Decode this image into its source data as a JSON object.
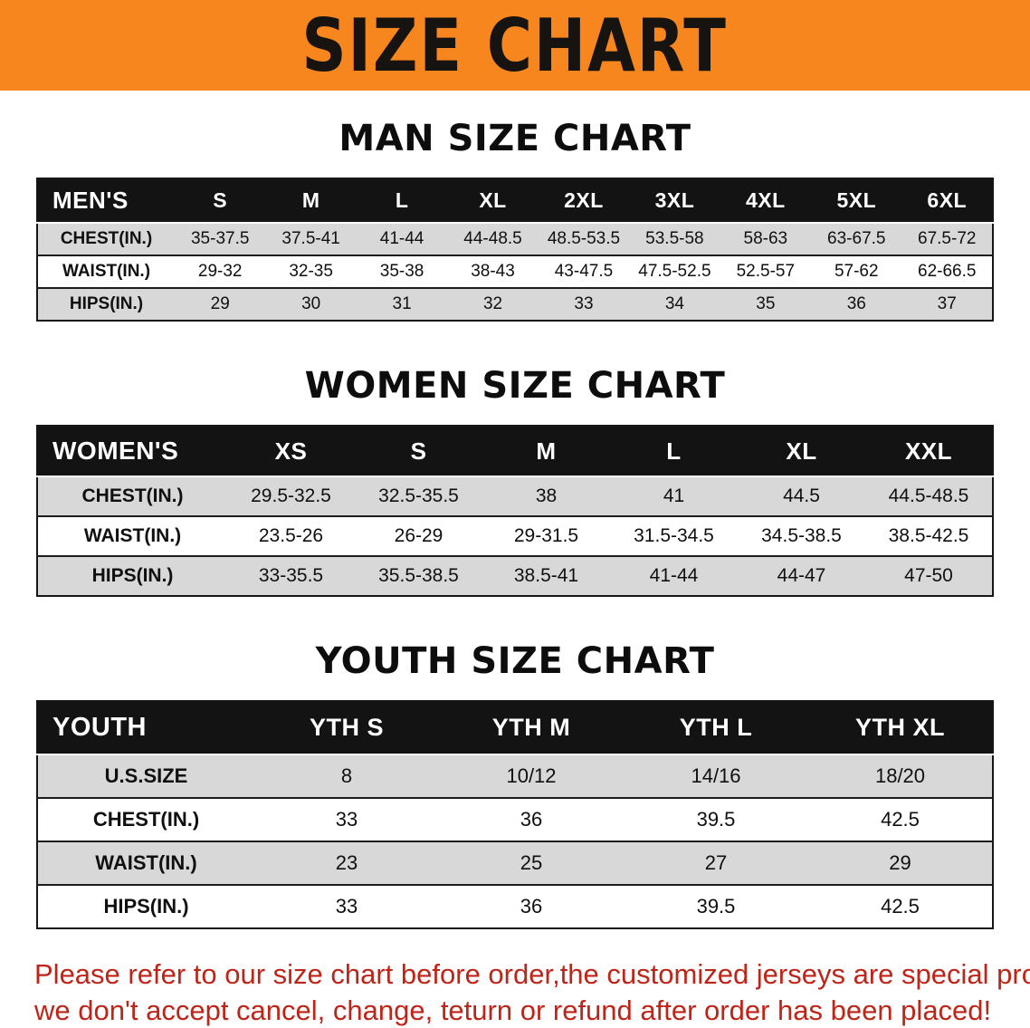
{
  "banner": {
    "title": "SIZE CHART"
  },
  "colors": {
    "banner_bg": "#F6861D",
    "table_header_bg": "#131313",
    "row_alt_gray": "#d8d8d8",
    "disclaimer_red": "#bf2418"
  },
  "sections": [
    {
      "id": "men",
      "heading": "MAN SIZE CHART",
      "table": {
        "header": [
          "MEN'S",
          "S",
          "M",
          "L",
          "XL",
          "2XL",
          "3XL",
          "4XL",
          "5XL",
          "6XL"
        ],
        "rows": [
          [
            "CHEST(IN.)",
            "35-37.5",
            "37.5-41",
            "41-44",
            "44-48.5",
            "48.5-53.5",
            "53.5-58",
            "58-63",
            "63-67.5",
            "67.5-72"
          ],
          [
            "WAIST(IN.)",
            "29-32",
            "32-35",
            "35-38",
            "38-43",
            "43-47.5",
            "47.5-52.5",
            "52.5-57",
            "57-62",
            "62-66.5"
          ],
          [
            "HIPS(IN.)",
            "29",
            "30",
            "31",
            "32",
            "33",
            "34",
            "35",
            "36",
            "37"
          ]
        ]
      }
    },
    {
      "id": "women",
      "heading": "WOMEN SIZE CHART",
      "table": {
        "header": [
          "WOMEN'S",
          "XS",
          "S",
          "M",
          "L",
          "XL",
          "XXL"
        ],
        "rows": [
          [
            "CHEST(IN.)",
            "29.5-32.5",
            "32.5-35.5",
            "38",
            "41",
            "44.5",
            "44.5-48.5"
          ],
          [
            "WAIST(IN.)",
            "23.5-26",
            "26-29",
            "29-31.5",
            "31.5-34.5",
            "34.5-38.5",
            "38.5-42.5"
          ],
          [
            "HIPS(IN.)",
            "33-35.5",
            "35.5-38.5",
            "38.5-41",
            "41-44",
            "44-47",
            "47-50"
          ]
        ]
      }
    },
    {
      "id": "youth",
      "heading": "YOUTH SIZE CHART",
      "table": {
        "header": [
          "YOUTH",
          "YTH S",
          "YTH M",
          "YTH L",
          "YTH XL"
        ],
        "rows": [
          [
            "U.S.SIZE",
            "8",
            "10/12",
            "14/16",
            "18/20"
          ],
          [
            "CHEST(IN.)",
            "33",
            "36",
            "39.5",
            "42.5"
          ],
          [
            "WAIST(IN.)",
            "23",
            "25",
            "27",
            "29"
          ],
          [
            "HIPS(IN.)",
            "33",
            "36",
            "39.5",
            "42.5"
          ]
        ]
      }
    }
  ],
  "disclaimer": {
    "line1": "Please refer to our size chart before order,the customized jerseys are special products,",
    "line2": "we don't accept cancel, change, teturn or refund after order has been placed!"
  }
}
